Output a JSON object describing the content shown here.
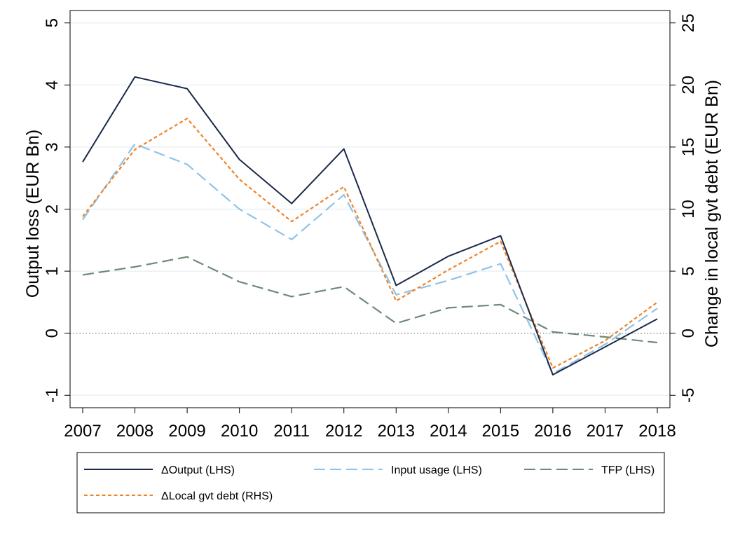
{
  "chart_data": {
    "type": "line",
    "x": [
      2007,
      2008,
      2009,
      2010,
      2011,
      2012,
      2013,
      2014,
      2015,
      2016,
      2017,
      2018
    ],
    "xticks": [
      "2007",
      "2008",
      "2009",
      "2010",
      "2011",
      "2012",
      "2013",
      "2014",
      "2015",
      "2016",
      "2017",
      "2018"
    ],
    "y_left": {
      "label": "Output loss (EUR Bn)",
      "lim": [
        -1.2,
        5.2
      ],
      "ticks": [
        -1,
        0,
        1,
        2,
        3,
        4,
        5
      ],
      "tick_labels": [
        "-1",
        "0",
        "1",
        "2",
        "3",
        "4",
        "5"
      ]
    },
    "y_right": {
      "label": "Change in local gvt debt (EUR Bn)",
      "lim": [
        -6,
        26
      ],
      "ticks": [
        -5,
        0,
        5,
        10,
        15,
        20,
        25
      ],
      "tick_labels": [
        "-5",
        "0",
        "5",
        "10",
        "15",
        "20",
        "25"
      ]
    },
    "zero_line": true,
    "grid": "horizontal",
    "legend_position": "bottom",
    "series": [
      {
        "name": "ΔOutput (LHS)",
        "axis": "left",
        "color": "#1b2a4a",
        "style": "solid",
        "values": [
          2.76,
          4.13,
          3.94,
          2.8,
          2.09,
          2.97,
          0.77,
          1.24,
          1.57,
          -0.67,
          -0.22,
          0.23
        ]
      },
      {
        "name": "Input usage (LHS)",
        "axis": "left",
        "color": "#8fc3e8",
        "style": "longdash",
        "values": [
          1.83,
          3.05,
          2.72,
          2.0,
          1.51,
          2.23,
          0.62,
          0.85,
          1.12,
          -0.65,
          -0.18,
          0.4
        ]
      },
      {
        "name": "TFP (LHS)",
        "axis": "left",
        "color": "#6e8a7a",
        "style": "longdash",
        "values": [
          0.94,
          1.07,
          1.23,
          0.83,
          0.59,
          0.75,
          0.16,
          0.41,
          0.46,
          0.02,
          -0.06,
          -0.15
        ]
      },
      {
        "name": "ΔLocal gvt debt (RHS)",
        "axis": "right",
        "color": "#f08226",
        "style": "shortdash",
        "values": [
          9.4,
          14.8,
          17.3,
          12.4,
          9.0,
          11.8,
          2.6,
          5.1,
          7.4,
          -2.8,
          -0.6,
          2.5
        ]
      }
    ]
  }
}
